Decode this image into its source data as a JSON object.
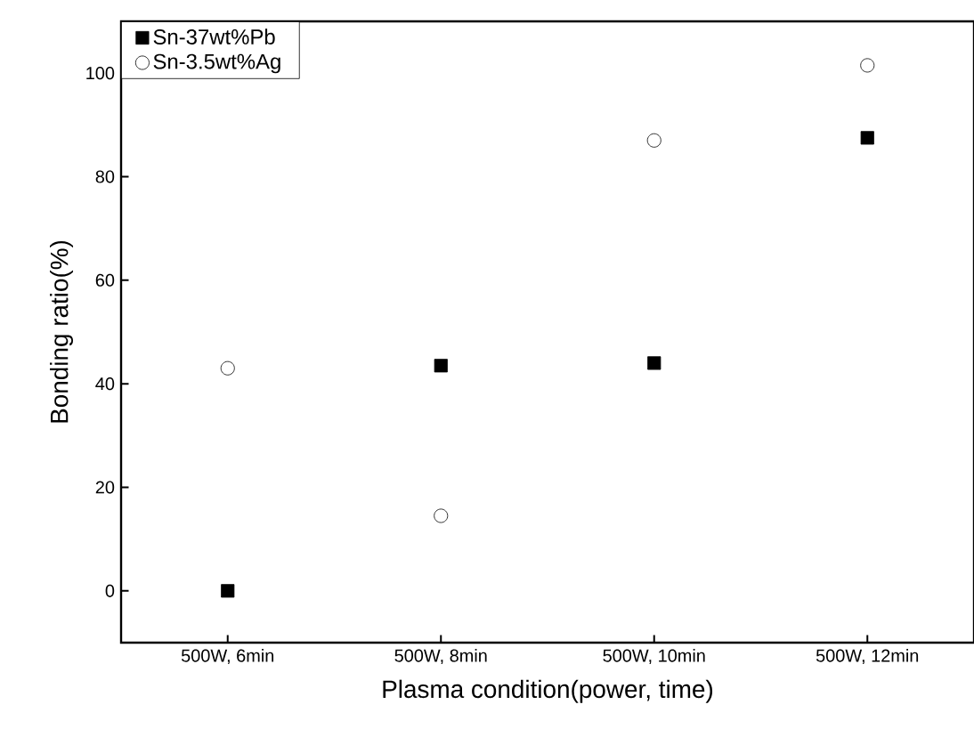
{
  "chart_data": {
    "type": "scatter",
    "xlabel": "Plasma condition(power, time)",
    "ylabel": "Bonding ratio(%)",
    "categories": [
      "500W, 6min",
      "500W, 8min",
      "500W, 10min",
      "500W, 12min"
    ],
    "series": [
      {
        "name": "Sn-37wt%Pb",
        "color": "#000000",
        "marker": "square",
        "values": [
          0,
          43.5,
          44,
          87.5
        ]
      },
      {
        "name": "Sn-3.5wt%Ag",
        "color": "#000000",
        "marker": "circle",
        "values": [
          43,
          14.5,
          87,
          101.5
        ]
      }
    ],
    "ylim": [
      -10,
      110
    ],
    "yticks": [
      0,
      20,
      40,
      60,
      80,
      100
    ],
    "grid": false,
    "legend": "top left"
  }
}
